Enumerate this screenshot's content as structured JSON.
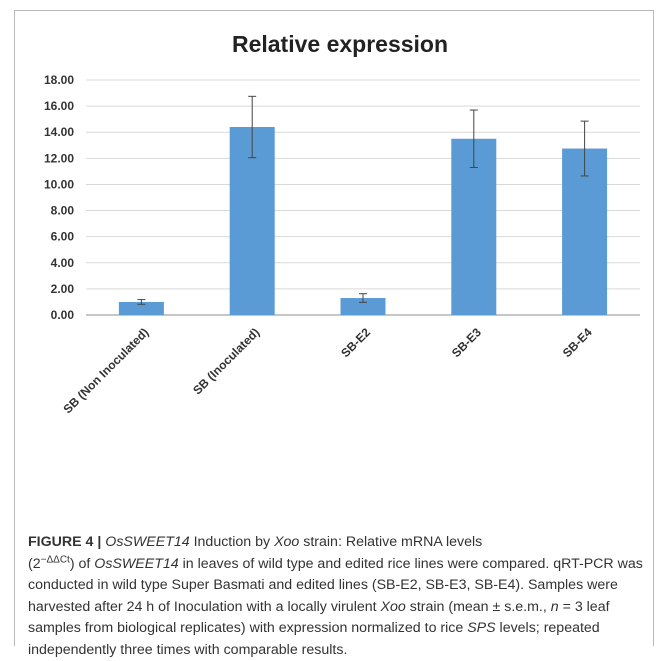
{
  "chart_data": {
    "type": "bar",
    "title": "Relative expression",
    "categories": [
      "SB (Non Inoculated)",
      "SB (Inoculated)",
      "SB-E2",
      "SB-E3",
      "SB-E4"
    ],
    "values": [
      1.0,
      14.4,
      1.3,
      13.5,
      12.75
    ],
    "errors": [
      0.18,
      2.35,
      0.33,
      2.2,
      2.1
    ],
    "ylim": [
      0,
      18
    ],
    "yticks": [
      "0.00",
      "2.00",
      "4.00",
      "6.00",
      "8.00",
      "10.00",
      "12.00",
      "14.00",
      "16.00",
      "18.00"
    ],
    "xlabel": "",
    "ylabel": "",
    "grid": true,
    "bar_color": "#5b9bd5"
  },
  "caption": {
    "label": "FIGURE 4 |",
    "gene": "OsSWEET14",
    "t1": " Induction by ",
    "strain": "Xoo",
    "t2": " strain: Relative mRNA levels",
    "t3": "(2",
    "sup": "−ΔΔCt",
    "t4": ") of ",
    "gene2": "OsSWEET14",
    "t5": " in leaves of wild type and edited rice lines were compared. qRT-PCR was conducted in wild type Super Basmati and edited lines (SB-E2, SB-E3, SB-E4). Samples were harvested after 24 h of Inoculation with a locally virulent ",
    "strain2": "Xoo",
    "t6": " strain (mean ± s.e.m., ",
    "n_var": "n",
    "t7": " = 3 leaf samples from biological replicates) with expression normalized to rice ",
    "sps": "SPS",
    "t8": " levels; repeated independently three times with comparable results."
  }
}
